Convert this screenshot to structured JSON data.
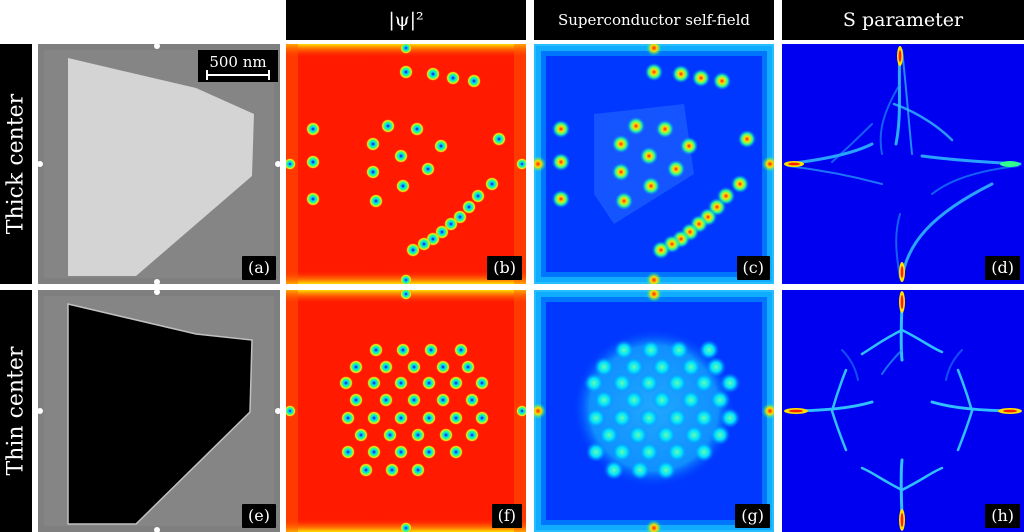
{
  "headers": {
    "col_b": "|ψ|²",
    "col_c": "Superconductor self-field",
    "col_d": "S parameter",
    "row_top": "Thick center",
    "row_bottom": "Thin center"
  },
  "scale_bar": "500 nm",
  "panel_labels": [
    "(a)",
    "(b)",
    "(c)",
    "(d)",
    "(e)",
    "(f)",
    "(g)",
    "(h)"
  ],
  "colors": {
    "background": "#ffffff",
    "header_bg": "#000000",
    "frame_gray": "#808080",
    "thick_center": "#d0d0d0",
    "thin_center": "#000000",
    "psi_red": "#ff1a00",
    "field_blue": "#0033ff",
    "s_blue": "#0000f0"
  }
}
